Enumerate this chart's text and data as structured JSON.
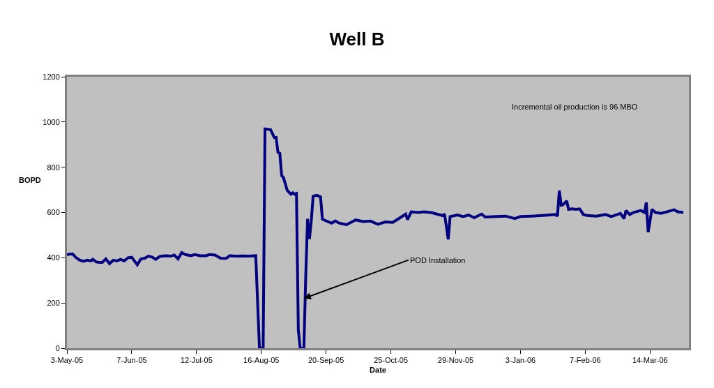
{
  "chart_data": {
    "type": "line",
    "title": "Well B",
    "xlabel": "Date",
    "ylabel": "BOPD",
    "x": [
      "2005-05-03",
      "2005-05-06",
      "2005-05-08",
      "2005-05-10",
      "2005-05-12",
      "2005-05-14",
      "2005-05-16",
      "2005-05-17",
      "2005-05-19",
      "2005-05-22",
      "2005-05-24",
      "2005-05-26",
      "2005-05-28",
      "2005-05-30",
      "2005-06-01",
      "2005-06-03",
      "2005-06-05",
      "2005-06-07",
      "2005-06-10",
      "2005-06-12",
      "2005-06-14",
      "2005-06-16",
      "2005-06-18",
      "2005-06-20",
      "2005-06-22",
      "2005-06-24",
      "2005-06-26",
      "2005-06-28",
      "2005-06-30",
      "2005-07-02",
      "2005-07-04",
      "2005-07-06",
      "2005-07-09",
      "2005-07-11",
      "2005-07-14",
      "2005-07-17",
      "2005-07-19",
      "2005-07-22",
      "2005-07-25",
      "2005-07-28",
      "2005-07-30",
      "2005-08-02",
      "2005-08-06",
      "2005-08-09",
      "2005-08-11",
      "2005-08-13",
      "2005-08-15",
      "2005-08-17",
      "2005-08-18",
      "2005-08-21",
      "2005-08-23",
      "2005-08-24",
      "2005-08-25",
      "2005-08-26",
      "2005-08-27",
      "2005-08-28",
      "2005-08-30",
      "2005-09-01",
      "2005-09-02",
      "2005-09-03",
      "2005-09-04",
      "2005-09-05",
      "2005-09-06",
      "2005-09-08",
      "2005-09-09",
      "2005-09-10",
      "2005-09-11",
      "2005-09-12",
      "2005-09-13",
      "2005-09-15",
      "2005-09-17",
      "2005-09-18",
      "2005-09-23",
      "2005-09-25",
      "2005-09-27",
      "2005-10-01",
      "2005-10-06",
      "2005-10-10",
      "2005-10-14",
      "2005-10-18",
      "2005-10-22",
      "2005-10-26",
      "2005-10-30",
      "2005-11-02",
      "2005-11-03",
      "2005-11-05",
      "2005-11-09",
      "2005-11-12",
      "2005-11-16",
      "2005-11-22",
      "2005-11-23",
      "2005-11-25",
      "2005-11-26",
      "2005-11-30",
      "2005-12-03",
      "2005-12-06",
      "2005-12-09",
      "2005-12-13",
      "2005-12-15",
      "2005-12-21",
      "2005-12-26",
      "2005-12-31",
      "2006-01-03",
      "2006-01-09",
      "2006-01-15",
      "2006-01-22",
      "2006-01-23",
      "2006-01-24",
      "2006-01-25",
      "2006-01-26",
      "2006-01-28",
      "2006-01-29",
      "2006-01-31",
      "2006-02-02",
      "2006-02-04",
      "2006-02-06",
      "2006-02-08",
      "2006-02-13",
      "2006-02-18",
      "2006-02-21",
      "2006-02-26",
      "2006-02-28",
      "2006-03-01",
      "2006-03-03",
      "2006-03-05",
      "2006-03-09",
      "2006-03-11",
      "2006-03-12",
      "2006-03-13",
      "2006-03-15",
      "2006-03-17",
      "2006-03-20",
      "2006-03-24",
      "2006-03-27",
      "2006-03-29",
      "2006-04-01"
    ],
    "series": [
      {
        "color": "#000080",
        "values": [
          414,
          417,
          400,
          389,
          384,
          389,
          386,
          393,
          381,
          379,
          395,
          374,
          389,
          386,
          393,
          386,
          400,
          402,
          369,
          395,
          398,
          407,
          403,
          393,
          405,
          408,
          409,
          407,
          412,
          395,
          423,
          414,
          409,
          414,
          409,
          409,
          414,
          412,
          398,
          397,
          409,
          407,
          408,
          407,
          408,
          409,
          0,
          0,
          969,
          966,
          932,
          932,
          866,
          862,
          763,
          754,
          698,
          681,
          687,
          681,
          684,
          81,
          0,
          0,
          315,
          572,
          483,
          563,
          672,
          676,
          669,
          570,
          553,
          563,
          553,
          546,
          567,
          560,
          562,
          548,
          558,
          556,
          577,
          593,
          569,
          603,
          600,
          603,
          599,
          586,
          593,
          481,
          582,
          589,
          582,
          589,
          577,
          593,
          580,
          582,
          584,
          573,
          582,
          584,
          587,
          591,
          584,
          697,
          632,
          634,
          651,
          614,
          616,
          614,
          616,
          591,
          587,
          584,
          591,
          582,
          596,
          573,
          609,
          591,
          600,
          609,
          600,
          644,
          513,
          614,
          600,
          596,
          605,
          612,
          603,
          600
        ]
      }
    ],
    "xlim": [
      "2005-05-03",
      "2006-04-04"
    ],
    "xticks": [
      {
        "value": "2005-05-03",
        "label": "3-May-05"
      },
      {
        "value": "2005-06-07",
        "label": "7-Jun-05"
      },
      {
        "value": "2005-07-12",
        "label": "12-Jul-05"
      },
      {
        "value": "2005-08-16",
        "label": "16-Aug-05"
      },
      {
        "value": "2005-09-20",
        "label": "20-Sep-05"
      },
      {
        "value": "2005-10-25",
        "label": "25-Oct-05"
      },
      {
        "value": "2005-11-29",
        "label": "29-Nov-05"
      },
      {
        "value": "2006-01-03",
        "label": "3-Jan-06"
      },
      {
        "value": "2006-02-07",
        "label": "7-Feb-06"
      },
      {
        "value": "2006-03-14",
        "label": "14-Mar-06"
      }
    ],
    "ylim": [
      0,
      1200
    ],
    "yticks": [
      0,
      200,
      400,
      600,
      800,
      1000,
      1200
    ],
    "annotations": [
      "Incremental oil production is 96 MBO",
      {
        "text": "POD Installation",
        "x": "2005-09-08",
        "y": 220
      }
    ],
    "grid": false,
    "marker": "none",
    "line_style": "solid"
  }
}
